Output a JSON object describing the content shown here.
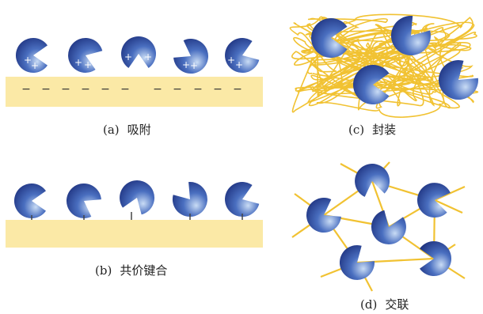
{
  "panels": {
    "a": {
      "letter": "(a)",
      "caption": "吸附",
      "surface_charge": "−",
      "particle_charge": "+"
    },
    "b": {
      "letter": "(b)",
      "caption": "共价键合"
    },
    "c": {
      "letter": "(c)",
      "caption": "封装"
    },
    "d": {
      "letter": "(d)",
      "caption": "交联"
    }
  },
  "colors": {
    "particle_dark": "#1c2f7c",
    "particle_light": "#c9dcf5",
    "substrate": "#fbe9a6",
    "polymer": "#f1c232",
    "link": "#f1c232",
    "bond": "#444444",
    "charge_dark": "#333333",
    "charge_light": "#ffffff"
  },
  "icons": {
    "particle": "pacman-particle-icon"
  }
}
